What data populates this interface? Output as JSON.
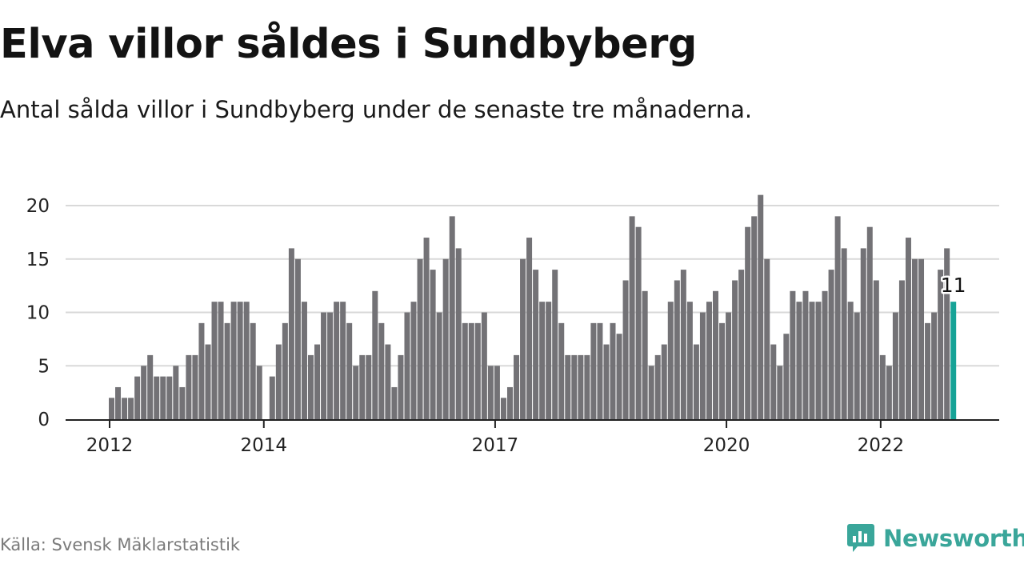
{
  "title": "Elva villor såldes i Sundbyberg",
  "subtitle": "Antal sålda villor i Sundbyberg under de senaste tre månaderna.",
  "source": "Källa: Svensk Mäklarstatistik",
  "brand": {
    "name": "Newsworthy",
    "logo_icon": "newsworthy-logo-icon",
    "color": "#3aa69a"
  },
  "colors": {
    "bar": "#737276",
    "highlight": "#16a397",
    "grid": "#d9d9d9",
    "axis": "#222222"
  },
  "chart_data": {
    "type": "bar",
    "title": "Elva villor såldes i Sundbyberg",
    "xlabel": "",
    "ylabel": "",
    "ylim": [
      0,
      21
    ],
    "yticks": [
      0,
      5,
      10,
      15,
      20
    ],
    "x_tick_labels": [
      {
        "label": "2012",
        "index": 0
      },
      {
        "label": "2014",
        "index": 24
      },
      {
        "label": "2017",
        "index": 60
      },
      {
        "label": "2020",
        "index": 96
      },
      {
        "label": "2022",
        "index": 120
      }
    ],
    "grid": true,
    "highlight_label": "11",
    "highlight_index": 131,
    "values": [
      2,
      3,
      2,
      2,
      4,
      5,
      6,
      4,
      4,
      4,
      5,
      3,
      6,
      6,
      9,
      7,
      11,
      11,
      9,
      11,
      11,
      11,
      9,
      5,
      0,
      4,
      7,
      9,
      16,
      15,
      11,
      6,
      7,
      10,
      10,
      11,
      11,
      9,
      5,
      6,
      6,
      12,
      9,
      7,
      3,
      6,
      10,
      11,
      15,
      17,
      14,
      10,
      15,
      19,
      16,
      9,
      9,
      9,
      10,
      5,
      5,
      2,
      3,
      6,
      15,
      17,
      14,
      11,
      11,
      14,
      9,
      6,
      6,
      6,
      6,
      9,
      9,
      7,
      9,
      8,
      13,
      19,
      18,
      12,
      5,
      6,
      7,
      11,
      13,
      14,
      11,
      7,
      10,
      11,
      12,
      9,
      10,
      13,
      14,
      18,
      19,
      21,
      15,
      7,
      5,
      8,
      12,
      11,
      12,
      11,
      11,
      12,
      14,
      19,
      16,
      11,
      10,
      16,
      18,
      13,
      6,
      5,
      10,
      13,
      17,
      15,
      15,
      9,
      10,
      14,
      16,
      11
    ]
  }
}
